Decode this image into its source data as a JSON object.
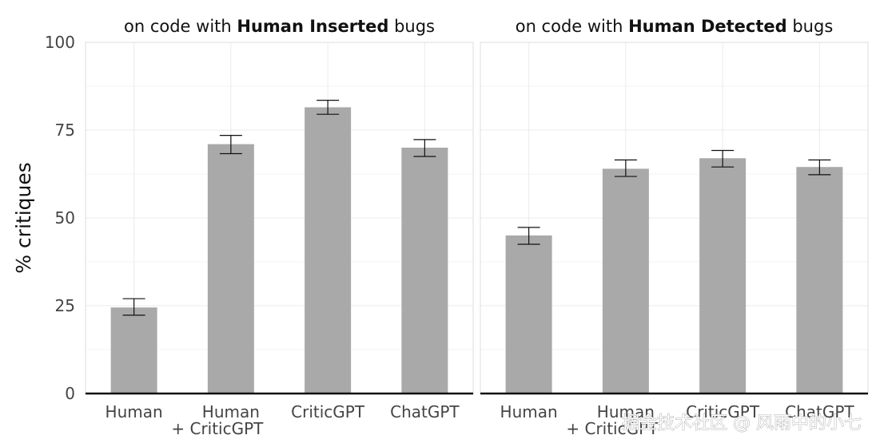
{
  "chart_data": {
    "type": "bar",
    "ylabel": "% critiques",
    "ylim": [
      0,
      100
    ],
    "yticks": [
      "0",
      "25",
      "50",
      "75",
      "100"
    ],
    "grid": true,
    "panels": [
      {
        "title_prefix": "on code with ",
        "title_bold": "Human Inserted",
        "title_suffix": " bugs",
        "categories": [
          [
            "Human"
          ],
          [
            "Human",
            "+ CriticGPT"
          ],
          [
            "CriticGPT"
          ],
          [
            "ChatGPT"
          ]
        ],
        "values": [
          24.5,
          71,
          81.5,
          70
        ],
        "error_low": [
          22.3,
          68.3,
          79.5,
          67.5
        ],
        "error_high": [
          27,
          73.5,
          83.5,
          72.3
        ]
      },
      {
        "title_prefix": "on code with ",
        "title_bold": "Human Detected",
        "title_suffix": " bugs",
        "categories": [
          [
            "Human"
          ],
          [
            "Human",
            "+ CriticGPT"
          ],
          [
            "CriticGPT"
          ],
          [
            "ChatGPT"
          ]
        ],
        "values": [
          45,
          64,
          67,
          64.5
        ],
        "error_low": [
          42.5,
          61.8,
          64.5,
          62.3
        ],
        "error_high": [
          47.3,
          66.5,
          69.2,
          66.5
        ]
      }
    ],
    "colors": {
      "bar": "#a9a9a9",
      "error_bar": "#111111"
    }
  },
  "watermark": "掘金技术社区 @ 风雨中的小七"
}
